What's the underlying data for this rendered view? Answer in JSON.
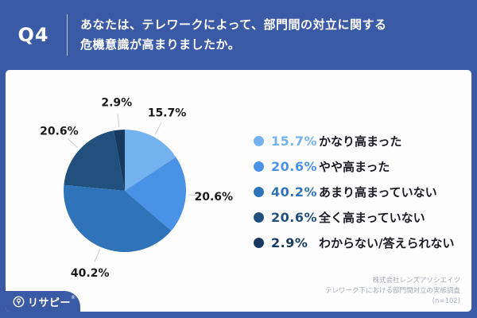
{
  "header": {
    "q_label": "Q4",
    "title_line1": "あなたは、テレワークによって、部門間の対立に関する",
    "title_line2": "危機意識が高まりましたか。"
  },
  "chart_data": {
    "type": "pie",
    "title": "あなたは、テレワークによって、部門間の対立に関する危機意識が高まりましたか。",
    "start_angle_deg": 0,
    "direction": "clockwise",
    "legend_position": "right",
    "items": [
      {
        "label": "かなり高まった",
        "value": 15.7,
        "percent_text": "15.7%",
        "color": "#73B2EE"
      },
      {
        "label": "やや高まった",
        "value": 20.6,
        "percent_text": "20.6%",
        "color": "#4A92E6"
      },
      {
        "label": "あまり高まっていない",
        "value": 40.2,
        "percent_text": "40.2%",
        "color": "#2F74B8"
      },
      {
        "label": "全く高まっていない",
        "value": 20.6,
        "percent_text": "20.6%",
        "color": "#21507E"
      },
      {
        "label": "わからない/答えられない",
        "value": 2.9,
        "percent_text": "2.9%",
        "color": "#17395F"
      }
    ]
  },
  "footer": {
    "company": "株式会社レンズアソシエイツ",
    "survey": "テレワーク下における部門間対立の実態調査",
    "sample": "(n=102)"
  },
  "logo": {
    "text": "リサピー",
    "mark": "®"
  },
  "colors": {
    "brand_blue": "#3B5AA6",
    "card_bg": "#FDFDFD",
    "leader_line": "#C9CDD3",
    "label_text": "#1A1A1A"
  }
}
